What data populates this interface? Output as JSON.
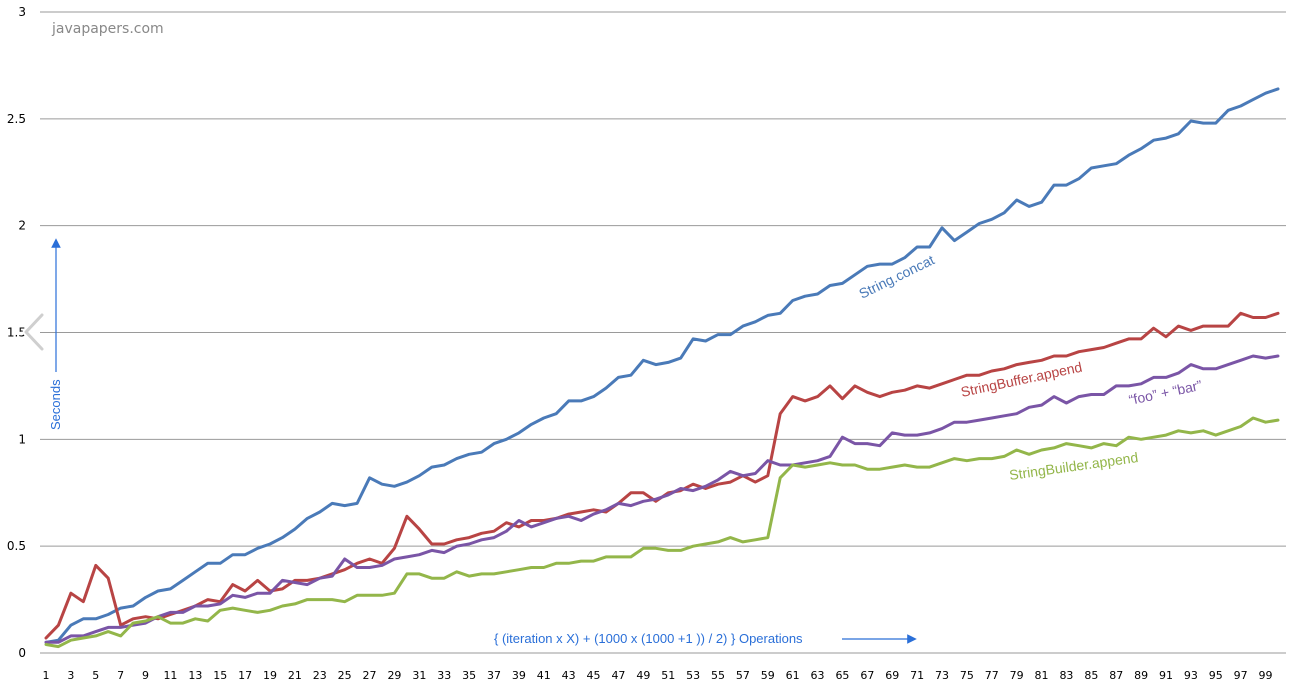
{
  "watermark": "javapapers.com",
  "ylabel": "Seconds",
  "xlabel": "{ (iteration x X) + (1000 x (1000 +1 )) / 2) } Operations",
  "colors": {
    "grid": "#9a9a9a",
    "axis_note": "#2a6fd8"
  },
  "icons": {
    "nav": "chevron-left-icon"
  },
  "chart_data": {
    "type": "line",
    "x": [
      1,
      2,
      3,
      4,
      5,
      6,
      7,
      8,
      9,
      10,
      11,
      12,
      13,
      14,
      15,
      16,
      17,
      18,
      19,
      20,
      21,
      22,
      23,
      24,
      25,
      26,
      27,
      28,
      29,
      30,
      31,
      32,
      33,
      34,
      35,
      36,
      37,
      38,
      39,
      40,
      41,
      42,
      43,
      44,
      45,
      46,
      47,
      48,
      49,
      50,
      51,
      52,
      53,
      54,
      55,
      56,
      57,
      58,
      59,
      60,
      61,
      62,
      63,
      64,
      65,
      66,
      67,
      68,
      69,
      70,
      71,
      72,
      73,
      74,
      75,
      76,
      77,
      78,
      79,
      80,
      81,
      82,
      83,
      84,
      85,
      86,
      87,
      88,
      89,
      90,
      91,
      92,
      93,
      94,
      95,
      96,
      97,
      98,
      99,
      100
    ],
    "x_tick_labels": [
      "1",
      "3",
      "5",
      "7",
      "9",
      "11",
      "13",
      "15",
      "17",
      "19",
      "21",
      "23",
      "25",
      "27",
      "29",
      "31",
      "33",
      "35",
      "37",
      "39",
      "41",
      "43",
      "45",
      "47",
      "49",
      "51",
      "53",
      "55",
      "57",
      "59",
      "61",
      "63",
      "65",
      "67",
      "69",
      "71",
      "73",
      "75",
      "77",
      "79",
      "81",
      "83",
      "85",
      "87",
      "89",
      "91",
      "93",
      "95",
      "97",
      "99"
    ],
    "y_tick_labels": [
      "0",
      "0.5",
      "1",
      "1.5",
      "2",
      "2.5",
      "3"
    ],
    "ylim": [
      0,
      3
    ],
    "grid": true,
    "series": [
      {
        "name": "String.concat",
        "color": "#4a7ab8",
        "values": [
          0.05,
          0.06,
          0.13,
          0.16,
          0.16,
          0.18,
          0.21,
          0.22,
          0.26,
          0.29,
          0.3,
          0.34,
          0.38,
          0.42,
          0.42,
          0.46,
          0.46,
          0.49,
          0.51,
          0.54,
          0.58,
          0.63,
          0.66,
          0.7,
          0.69,
          0.7,
          0.82,
          0.79,
          0.78,
          0.8,
          0.83,
          0.87,
          0.88,
          0.91,
          0.93,
          0.94,
          0.98,
          1.0,
          1.03,
          1.07,
          1.1,
          1.12,
          1.18,
          1.18,
          1.2,
          1.24,
          1.29,
          1.3,
          1.37,
          1.35,
          1.36,
          1.38,
          1.47,
          1.46,
          1.49,
          1.49,
          1.53,
          1.55,
          1.58,
          1.59,
          1.65,
          1.67,
          1.68,
          1.72,
          1.73,
          1.77,
          1.81,
          1.82,
          1.82,
          1.85,
          1.9,
          1.9,
          1.99,
          1.93,
          1.97,
          2.01,
          2.03,
          2.06,
          2.12,
          2.09,
          2.11,
          2.19,
          2.19,
          2.22,
          2.27,
          2.28,
          2.29,
          2.33,
          2.36,
          2.4,
          2.41,
          2.43,
          2.49,
          2.48,
          2.48,
          2.54,
          2.56,
          2.59,
          2.62,
          2.64
        ]
      },
      {
        "name": "StringBuffer.append",
        "color": "#b84444",
        "values": [
          0.07,
          0.13,
          0.28,
          0.24,
          0.41,
          0.35,
          0.13,
          0.16,
          0.17,
          0.16,
          0.18,
          0.2,
          0.22,
          0.25,
          0.24,
          0.32,
          0.29,
          0.34,
          0.29,
          0.3,
          0.34,
          0.34,
          0.35,
          0.37,
          0.39,
          0.42,
          0.44,
          0.42,
          0.49,
          0.64,
          0.58,
          0.51,
          0.51,
          0.53,
          0.54,
          0.56,
          0.57,
          0.61,
          0.59,
          0.62,
          0.62,
          0.63,
          0.65,
          0.66,
          0.67,
          0.66,
          0.7,
          0.75,
          0.75,
          0.71,
          0.75,
          0.76,
          0.79,
          0.77,
          0.79,
          0.8,
          0.83,
          0.8,
          0.83,
          1.12,
          1.2,
          1.18,
          1.2,
          1.25,
          1.19,
          1.25,
          1.22,
          1.2,
          1.22,
          1.23,
          1.25,
          1.24,
          1.26,
          1.28,
          1.3,
          1.3,
          1.32,
          1.33,
          1.35,
          1.36,
          1.37,
          1.39,
          1.39,
          1.41,
          1.42,
          1.43,
          1.45,
          1.47,
          1.47,
          1.52,
          1.48,
          1.53,
          1.51,
          1.53,
          1.53,
          1.53,
          1.59,
          1.57,
          1.57,
          1.59
        ]
      },
      {
        "name": "“foo” + “bar”",
        "color": "#7a55a6",
        "values": [
          0.05,
          0.05,
          0.08,
          0.08,
          0.1,
          0.12,
          0.12,
          0.13,
          0.14,
          0.17,
          0.19,
          0.19,
          0.22,
          0.22,
          0.23,
          0.27,
          0.26,
          0.28,
          0.28,
          0.34,
          0.33,
          0.32,
          0.35,
          0.36,
          0.44,
          0.4,
          0.4,
          0.41,
          0.44,
          0.45,
          0.46,
          0.48,
          0.47,
          0.5,
          0.51,
          0.53,
          0.54,
          0.57,
          0.62,
          0.59,
          0.61,
          0.63,
          0.64,
          0.62,
          0.65,
          0.67,
          0.7,
          0.69,
          0.71,
          0.72,
          0.74,
          0.77,
          0.76,
          0.78,
          0.81,
          0.85,
          0.83,
          0.84,
          0.9,
          0.88,
          0.88,
          0.89,
          0.9,
          0.92,
          1.01,
          0.98,
          0.98,
          0.97,
          1.03,
          1.02,
          1.02,
          1.03,
          1.05,
          1.08,
          1.08,
          1.09,
          1.1,
          1.11,
          1.12,
          1.15,
          1.16,
          1.2,
          1.17,
          1.2,
          1.21,
          1.21,
          1.25,
          1.25,
          1.26,
          1.29,
          1.29,
          1.31,
          1.35,
          1.33,
          1.33,
          1.35,
          1.37,
          1.39,
          1.38,
          1.39
        ]
      },
      {
        "name": "StringBuilder.append",
        "color": "#93b64a",
        "values": [
          0.04,
          0.03,
          0.06,
          0.07,
          0.08,
          0.1,
          0.08,
          0.14,
          0.15,
          0.17,
          0.14,
          0.14,
          0.16,
          0.15,
          0.2,
          0.21,
          0.2,
          0.19,
          0.2,
          0.22,
          0.23,
          0.25,
          0.25,
          0.25,
          0.24,
          0.27,
          0.27,
          0.27,
          0.28,
          0.37,
          0.37,
          0.35,
          0.35,
          0.38,
          0.36,
          0.37,
          0.37,
          0.38,
          0.39,
          0.4,
          0.4,
          0.42,
          0.42,
          0.43,
          0.43,
          0.45,
          0.45,
          0.45,
          0.49,
          0.49,
          0.48,
          0.48,
          0.5,
          0.51,
          0.52,
          0.54,
          0.52,
          0.53,
          0.54,
          0.82,
          0.88,
          0.87,
          0.88,
          0.89,
          0.88,
          0.88,
          0.86,
          0.86,
          0.87,
          0.88,
          0.87,
          0.87,
          0.89,
          0.91,
          0.9,
          0.91,
          0.91,
          0.92,
          0.95,
          0.93,
          0.95,
          0.96,
          0.98,
          0.97,
          0.96,
          0.98,
          0.97,
          1.01,
          1.0,
          1.01,
          1.02,
          1.04,
          1.03,
          1.04,
          1.02,
          1.04,
          1.06,
          1.1,
          1.08,
          1.09
        ]
      }
    ],
    "annotations": [
      {
        "text": "String.concat",
        "series": 0
      },
      {
        "text": "StringBuffer.append",
        "series": 1
      },
      {
        "text": "“foo” + “bar”",
        "series": 2
      },
      {
        "text": "StringBuilder.append",
        "series": 3
      }
    ]
  }
}
